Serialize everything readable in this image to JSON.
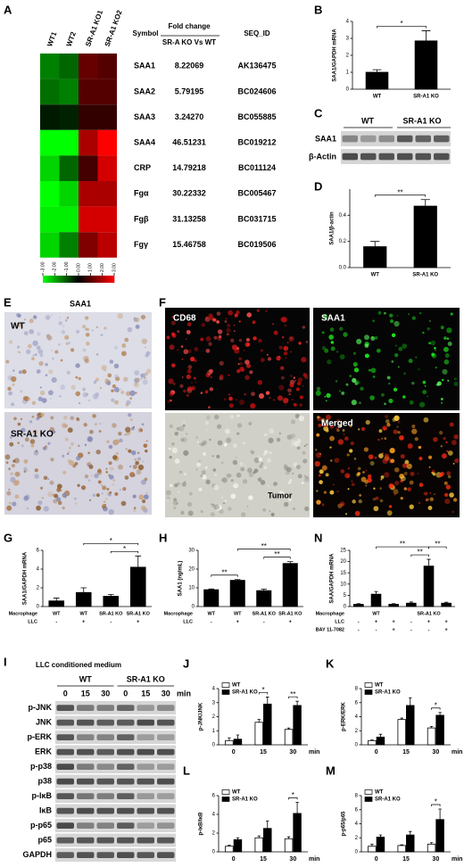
{
  "chart_data": [
    {
      "type": "heatmap",
      "panel": "A",
      "columns": [
        "WT1",
        "WT2",
        "SR-A1 KO1",
        "SR-A1 KO2"
      ],
      "values": [
        [
          -1.5,
          -1.2,
          1.2,
          1.0
        ],
        [
          -1.3,
          -1.5,
          1.0,
          1.0
        ],
        [
          -0.3,
          -0.4,
          0.6,
          0.6
        ],
        [
          -3,
          -3,
          2.0,
          3
        ],
        [
          -2.5,
          -1.2,
          0.8,
          2.5
        ],
        [
          -3,
          -2.5,
          2.0,
          2.0
        ],
        [
          -2.8,
          -2.8,
          2.5,
          2.5
        ],
        [
          -2.5,
          -1.5,
          1.5,
          2.2
        ]
      ],
      "clim": [
        -3,
        3
      ],
      "colors": [
        "#00ff00",
        "#000000",
        "#ff0000"
      ],
      "colorbar_ticks": [
        {
          "value": -3,
          "label": "-3.00"
        },
        {
          "value": -2,
          "label": "-2.00"
        },
        {
          "value": -1,
          "label": "-1.00"
        },
        {
          "value": 0,
          "label": "0.00"
        },
        {
          "value": 1,
          "label": "1.00"
        },
        {
          "value": 2,
          "label": "2.00"
        },
        {
          "value": 3,
          "label": "3.00"
        }
      ]
    },
    {
      "type": "bar",
      "panel": "B",
      "ylabel": "SAA1/GAPDH mRNA",
      "categories": [
        "WT",
        "SR-A1 KO"
      ],
      "values": [
        1.0,
        2.85
      ],
      "errors": [
        0.15,
        0.6
      ],
      "color": "#000000",
      "ylim": [
        0,
        4
      ],
      "yticks": [
        0,
        1,
        2,
        3,
        4
      ],
      "annotations": [
        "*"
      ]
    },
    {
      "type": "bar",
      "panel": "D",
      "ylabel": "SAA1/β-actin",
      "categories": [
        "WT",
        "SR-A1 KO"
      ],
      "values": [
        0.16,
        0.47
      ],
      "errors": [
        0.04,
        0.05
      ],
      "color": "#000000",
      "ylim": [
        0,
        0.6
      ],
      "yticks": [
        {
          "value": 0,
          "label": "0.0"
        },
        0.2,
        0.4
      ],
      "annotations": [
        "**"
      ]
    },
    {
      "type": "bar",
      "panel": "G",
      "ylabel": "SAA1/GAPDH mRNA",
      "rows": [
        {
          "name": "Macrophage",
          "labels": [
            "WT",
            "WT",
            "SR-A1 KO",
            "SR-A1 KO"
          ]
        },
        {
          "name": "LLC",
          "labels": [
            "-",
            "+",
            "-",
            "+"
          ]
        }
      ],
      "values": [
        0.6,
        1.5,
        1.1,
        4.2
      ],
      "errors": [
        0.3,
        0.5,
        0.2,
        1.2
      ],
      "color": "#000000",
      "ylim": [
        0,
        6
      ],
      "yticks": [
        0,
        2,
        4,
        6
      ],
      "annotations": [
        "*",
        "*"
      ]
    },
    {
      "type": "bar",
      "panel": "H",
      "ylabel": "SAA1 (ng/mL)",
      "rows": [
        {
          "name": "Macrophage",
          "labels": [
            "WT",
            "WT",
            "SR-A1 KO",
            "SR-A1 KO"
          ]
        },
        {
          "name": "LLC",
          "labels": [
            "-",
            "+",
            "-",
            "+"
          ]
        }
      ],
      "values": [
        9,
        14,
        8.5,
        23
      ],
      "errors": [
        0.4,
        0.4,
        0.8,
        1.0
      ],
      "color": "#000000",
      "ylim": [
        0,
        30
      ],
      "yticks": [
        0,
        10,
        20,
        30
      ],
      "annotations": [
        "**",
        "**",
        "**"
      ]
    },
    {
      "type": "bar",
      "panel": "N",
      "ylabel": "SAA/GAPDH mRNA",
      "rows": [
        {
          "name": "Macrophage",
          "labels": [
            "WT",
            "SR-A1 KO"
          ]
        },
        {
          "name": "LLC",
          "labels": [
            "-",
            "+",
            "+",
            "-",
            "+",
            "+"
          ]
        },
        {
          "name": "BAY 11-7082",
          "labels": [
            "-",
            "-",
            "+",
            "-",
            "-",
            "+"
          ]
        }
      ],
      "values": [
        1,
        5.5,
        1,
        1.5,
        18,
        1.5
      ],
      "errors": [
        0.3,
        1.2,
        0.3,
        0.5,
        3,
        0.4
      ],
      "color": "#000000",
      "ylim": [
        0,
        25
      ],
      "yticks": [
        0,
        5,
        10,
        15,
        20,
        25
      ],
      "annotations": [
        "**",
        "**",
        "**"
      ]
    },
    {
      "type": "grouped_bar",
      "panel": "J",
      "ylabel": "p-JNK/JNK",
      "categories": [
        "0",
        "15",
        "30"
      ],
      "xunit": "min",
      "series": [
        {
          "name": "WT",
          "color": "#ffffff",
          "values": [
            0.3,
            1.6,
            1.1
          ],
          "errors": [
            0.2,
            0.2,
            0.1
          ]
        },
        {
          "name": "SR-A1 KO",
          "color": "#000000",
          "values": [
            0.4,
            2.9,
            2.8
          ],
          "errors": [
            0.3,
            0.5,
            0.3
          ]
        }
      ],
      "ylim": [
        0,
        4
      ],
      "yticks": [
        0,
        1,
        2,
        3,
        4
      ],
      "annotations": [
        "*",
        "**"
      ]
    },
    {
      "type": "grouped_bar",
      "panel": "K",
      "ylabel": "p-ERK/ERK",
      "categories": [
        "0",
        "15",
        "30"
      ],
      "xunit": "min",
      "series": [
        {
          "name": "WT",
          "color": "#ffffff",
          "values": [
            0.6,
            3.6,
            2.4
          ],
          "errors": [
            0.1,
            0.2,
            0.2
          ]
        },
        {
          "name": "SR-A1 KO",
          "color": "#000000",
          "values": [
            1.1,
            5.6,
            4.2
          ],
          "errors": [
            0.4,
            1.1,
            0.4
          ]
        }
      ],
      "ylim": [
        0,
        8
      ],
      "yticks": [
        0,
        2,
        4,
        6,
        8
      ],
      "annotations": [
        "*"
      ]
    },
    {
      "type": "grouped_bar",
      "panel": "L",
      "ylabel": "p-IκB/IκB",
      "categories": [
        "0",
        "15",
        "30"
      ],
      "xunit": "min",
      "series": [
        {
          "name": "WT",
          "color": "#ffffff",
          "values": [
            0.6,
            1.5,
            1.4
          ],
          "errors": [
            0.1,
            0.2,
            0.2
          ]
        },
        {
          "name": "SR-A1 KO",
          "color": "#000000",
          "values": [
            1.3,
            2.5,
            4.1
          ],
          "errors": [
            0.2,
            0.8,
            1.2
          ]
        }
      ],
      "ylim": [
        0,
        6
      ],
      "yticks": [
        0,
        2,
        4,
        6
      ],
      "annotations": [
        "*"
      ]
    },
    {
      "type": "grouped_bar",
      "panel": "M",
      "ylabel": "p-p65/p65",
      "categories": [
        "0",
        "15",
        "30"
      ],
      "xunit": "min",
      "series": [
        {
          "name": "WT",
          "color": "#ffffff",
          "values": [
            0.8,
            0.9,
            1.1
          ],
          "errors": [
            0.3,
            0.1,
            0.2
          ]
        },
        {
          "name": "SR-A1 KO",
          "color": "#000000",
          "values": [
            2.1,
            2.4,
            4.6
          ],
          "errors": [
            0.3,
            0.5,
            1.5
          ]
        }
      ],
      "ylim": [
        0,
        8
      ],
      "yticks": [
        0,
        2,
        4,
        6,
        8
      ],
      "annotations": [
        "*"
      ]
    }
  ],
  "table": {
    "headers": {
      "symbol": "Symbol",
      "fold_change": "Fold change",
      "comparison": "SR-A KO Vs WT",
      "seq_id": "SEQ_ID"
    },
    "rows": [
      [
        "SAA1",
        "8.22069",
        "AK136475"
      ],
      [
        "SAA2",
        "5.79195",
        "BC024606"
      ],
      [
        "SAA3",
        "3.24270",
        "BC055885"
      ],
      [
        "SAA4",
        "46.51231",
        "BC019212"
      ],
      [
        "CRP",
        "14.79218",
        "BC011124"
      ],
      [
        "Fgα",
        "30.22332",
        "BC005467"
      ],
      [
        "Fgβ",
        "31.13258",
        "BC031715"
      ],
      [
        "Fgγ",
        "15.46758",
        "BC019506"
      ]
    ]
  },
  "blot_c": {
    "panel": "C",
    "groups": [
      "WT",
      "SR-A1 KO"
    ],
    "proteins": [
      "SAA1",
      "β-Actin"
    ]
  },
  "micrograph_e": {
    "panel": "E",
    "title": "SAA1",
    "labels": [
      "WT",
      "SR-A1 KO"
    ]
  },
  "micrograph_f": {
    "panel": "F",
    "labels": [
      "CD68",
      "SAA1",
      "Merged"
    ],
    "annotation": "Tumor"
  },
  "blot_i": {
    "panel": "I",
    "title": "LLC conditioned medium",
    "groups": [
      "WT",
      "SR-A1 KO"
    ],
    "times": [
      "0",
      "15",
      "30",
      "0",
      "15",
      "30"
    ],
    "time_unit": "min",
    "proteins": [
      "p-JNK",
      "JNK",
      "p-ERK",
      "ERK",
      "p-p38",
      "p38",
      "p-IκB",
      "IκB",
      "p-p65",
      "p65",
      "GAPDH"
    ]
  }
}
